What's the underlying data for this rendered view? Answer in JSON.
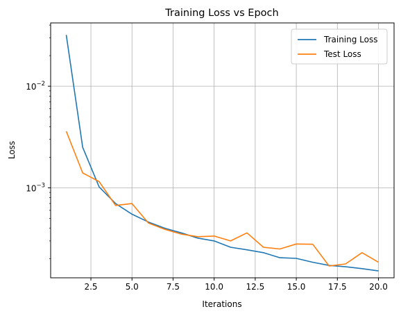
{
  "chart_data": {
    "type": "line",
    "title": "Training Loss vs Epoch",
    "xlabel": "Iterations",
    "ylabel": "Loss",
    "yscale": "log",
    "xlim": [
      0.05,
      20.95
    ],
    "ylim": [
      0.00013,
      0.042
    ],
    "grid": true,
    "legend_position": "top-right",
    "x": [
      1,
      2,
      3,
      4,
      5,
      6,
      7,
      8,
      9,
      10,
      11,
      12,
      13,
      14,
      15,
      16,
      17,
      18,
      19,
      20
    ],
    "series": [
      {
        "name": "Training Loss",
        "color": "#1f77b4",
        "values": [
          0.032,
          0.0025,
          0.00102,
          0.0007,
          0.00055,
          0.00046,
          0.0004,
          0.00036,
          0.00032,
          0.0003,
          0.00026,
          0.000245,
          0.00023,
          0.000205,
          0.000202,
          0.000185,
          0.000172,
          0.000167,
          0.00016,
          0.000152
        ]
      },
      {
        "name": "Test Loss",
        "color": "#ff7f0e",
        "values": [
          0.0036,
          0.0014,
          0.00115,
          0.00067,
          0.0007,
          0.00045,
          0.00039,
          0.00035,
          0.00033,
          0.000335,
          0.0003,
          0.00036,
          0.00026,
          0.00025,
          0.00028,
          0.000278,
          0.00017,
          0.000178,
          0.00023,
          0.000185
        ]
      }
    ],
    "xticks": [
      {
        "value": 2.5,
        "label": "2.5"
      },
      {
        "value": 5.0,
        "label": "5.0"
      },
      {
        "value": 7.5,
        "label": "7.5"
      },
      {
        "value": 10.0,
        "label": "10.0"
      },
      {
        "value": 12.5,
        "label": "12.5"
      },
      {
        "value": 15.0,
        "label": "15.0"
      },
      {
        "value": 17.5,
        "label": "17.5"
      },
      {
        "value": 20.0,
        "label": "20.0"
      }
    ],
    "yticks": [
      {
        "value": 0.001,
        "base": "10",
        "exp": "−3"
      },
      {
        "value": 0.01,
        "base": "10",
        "exp": "−2"
      }
    ]
  }
}
